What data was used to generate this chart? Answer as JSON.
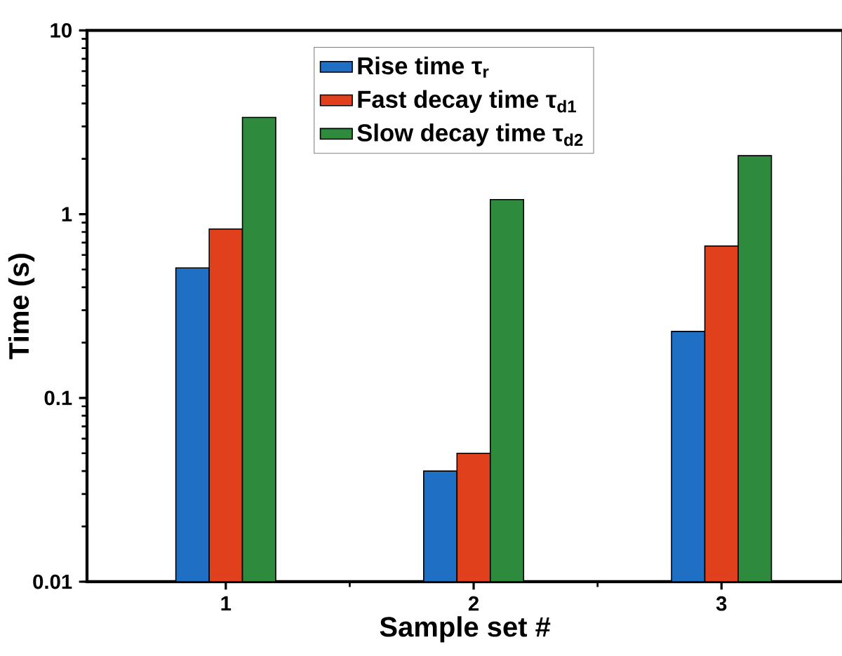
{
  "chart_data": {
    "type": "bar",
    "xlabel": "Sample set #",
    "ylabel": "Time (s)",
    "categories": [
      "1",
      "2",
      "3"
    ],
    "series": [
      {
        "name": "Rise time τ$_{r}$",
        "color": "#1f6fc4",
        "values": [
          0.51,
          0.04,
          0.23
        ]
      },
      {
        "name": "Fast decay time τ$_{d1}$",
        "color": "#e0401c",
        "values": [
          0.83,
          0.05,
          0.67
        ]
      },
      {
        "name": "Slow decay time τ$_{d2}$",
        "color": "#2e8b3e",
        "values": [
          3.36,
          1.2,
          2.08
        ]
      }
    ],
    "log": "y",
    "ylim": [
      0.01,
      10
    ],
    "yticks": [
      0.01,
      0.1,
      1,
      10
    ],
    "legend": "top"
  }
}
